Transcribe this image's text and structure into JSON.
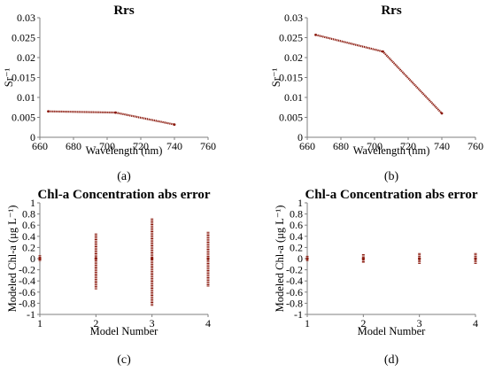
{
  "chart_data": [
    {
      "type": "line",
      "panel": "(a)",
      "title": "Rrs",
      "xlabel": "Wavelength (nm)",
      "ylabel": "Sr⁻¹",
      "xlim": [
        660,
        760
      ],
      "ylim": [
        0,
        0.03
      ],
      "xticks": [
        660,
        680,
        700,
        720,
        740,
        760
      ],
      "yticks": [
        0,
        0.005,
        0.01,
        0.015,
        0.02,
        0.025,
        0.03
      ],
      "xtick_labels": [
        "660",
        "680",
        "700",
        "720",
        "740",
        "760"
      ],
      "ytick_labels": [
        "0",
        "0.005",
        "0.01",
        "0.015",
        "0.02",
        "0.025",
        "0.03"
      ],
      "grid": false,
      "series": [
        {
          "color": "#8b1a0e",
          "x": [
            665,
            705,
            740
          ],
          "y": [
            0.0065,
            0.0062,
            0.0032
          ]
        }
      ]
    },
    {
      "type": "line",
      "panel": "(b)",
      "title": "Rrs",
      "xlabel": "Wavelength (nm)",
      "ylabel": "Sr⁻¹",
      "xlim": [
        660,
        760
      ],
      "ylim": [
        0,
        0.03
      ],
      "xticks": [
        660,
        680,
        700,
        720,
        740,
        760
      ],
      "yticks": [
        0,
        0.005,
        0.01,
        0.015,
        0.02,
        0.025,
        0.03
      ],
      "xtick_labels": [
        "660",
        "680",
        "700",
        "720",
        "740",
        "760"
      ],
      "ytick_labels": [
        "0",
        "0.005",
        "0.01",
        "0.015",
        "0.02",
        "0.025",
        "0.03"
      ],
      "grid": false,
      "series": [
        {
          "color": "#8b1a0e",
          "x": [
            665,
            705,
            740
          ],
          "y": [
            0.0257,
            0.0215,
            0.006
          ]
        }
      ]
    },
    {
      "type": "scatter",
      "panel": "(c)",
      "title": "Chl-a Concentration abs error",
      "xlabel": "Model Number",
      "ylabel": "Modeled Chl-a (μg L⁻¹)",
      "xlim": [
        1,
        4
      ],
      "ylim": [
        -1,
        1
      ],
      "xticks": [
        1,
        2,
        3,
        4
      ],
      "yticks": [
        -1,
        -0.8,
        -0.6,
        -0.4,
        -0.2,
        0,
        0.2,
        0.4,
        0.6,
        0.8,
        1
      ],
      "xtick_labels": [
        "1",
        "2",
        "3",
        "4"
      ],
      "ytick_labels": [
        "-1",
        "-0.8",
        "-0.6",
        "-0.4",
        "-0.2",
        "0",
        "0.2",
        "0.4",
        "0.6",
        "0.8",
        "1"
      ],
      "grid": false,
      "color": "#8b1a0e",
      "points": [
        {
          "model": 1,
          "min": -0.05,
          "max": 0.06
        },
        {
          "model": 2,
          "min": -0.55,
          "max": 0.45
        },
        {
          "model": 3,
          "min": -0.85,
          "max": 0.72
        },
        {
          "model": 4,
          "min": -0.5,
          "max": 0.48
        }
      ]
    },
    {
      "type": "scatter",
      "panel": "(d)",
      "title": "Chl-a Concentration abs error",
      "xlabel": "Model Number",
      "ylabel": "Modeled Chl-a (μg L⁻¹)",
      "xlim": [
        1,
        4
      ],
      "ylim": [
        -1,
        1
      ],
      "xticks": [
        1,
        2,
        3,
        4
      ],
      "yticks": [
        -1,
        -0.8,
        -0.6,
        -0.4,
        -0.2,
        0,
        0.2,
        0.4,
        0.6,
        0.8,
        1
      ],
      "xtick_labels": [
        "1",
        "2",
        "3",
        "4"
      ],
      "ytick_labels": [
        "-1",
        "-0.8",
        "-0.6",
        "-0.4",
        "-0.2",
        "0",
        "0.2",
        "0.4",
        "0.6",
        "0.8",
        "1"
      ],
      "grid": false,
      "color": "#8b1a0e",
      "points": [
        {
          "model": 1,
          "min": -0.05,
          "max": 0.05
        },
        {
          "model": 2,
          "min": -0.08,
          "max": 0.08
        },
        {
          "model": 3,
          "min": -0.1,
          "max": 0.1
        },
        {
          "model": 4,
          "min": -0.1,
          "max": 0.1
        }
      ]
    }
  ]
}
